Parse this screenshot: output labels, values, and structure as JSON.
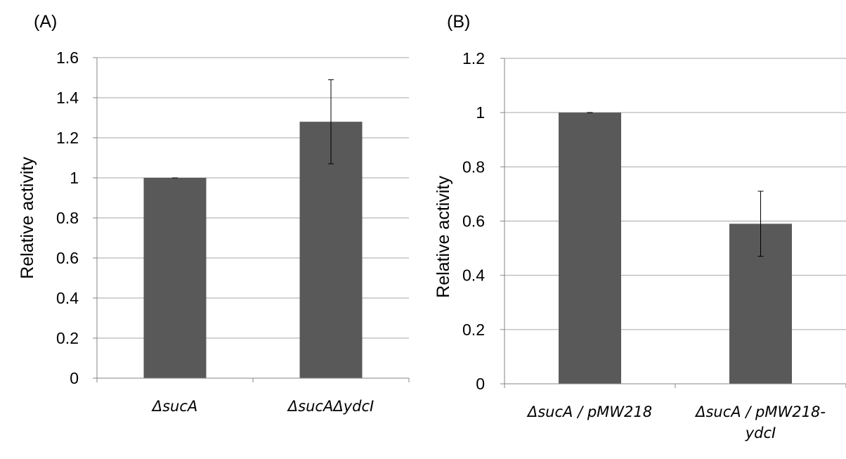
{
  "chart_data": [
    {
      "type": "bar",
      "panel_label": "(A)",
      "ylabel": "Relative activity",
      "xlabel": "",
      "ylim": [
        0,
        1.6
      ],
      "yticks": [
        0,
        0.2,
        0.4,
        0.6,
        0.8,
        1,
        1.2,
        1.4,
        1.6
      ],
      "ytick_labels": [
        "0",
        "0.2",
        "0.4",
        "0.6",
        "0.8",
        "1",
        "1.2",
        "1.4",
        "1.6"
      ],
      "grid": true,
      "categories": [
        [
          "ΔsucA"
        ],
        [
          "ΔsucAΔydcI"
        ]
      ],
      "values": [
        1.0,
        1.28
      ],
      "errors": [
        0.0,
        0.21
      ],
      "bar_color": "#595959"
    },
    {
      "type": "bar",
      "panel_label": "(B)",
      "ylabel": "Relative activity",
      "xlabel": "",
      "ylim": [
        0,
        1.2
      ],
      "yticks": [
        0,
        0.2,
        0.4,
        0.6,
        0.8,
        1,
        1.2
      ],
      "ytick_labels": [
        "0",
        "0.2",
        "0.4",
        "0.6",
        "0.8",
        "1",
        "1.2"
      ],
      "grid": true,
      "categories": [
        [
          "ΔsucA / pMW218"
        ],
        [
          "ΔsucA / pMW218-",
          "ydcI"
        ]
      ],
      "values": [
        1.0,
        0.59
      ],
      "errors": [
        0.0,
        0.12
      ],
      "bar_color": "#595959"
    }
  ]
}
